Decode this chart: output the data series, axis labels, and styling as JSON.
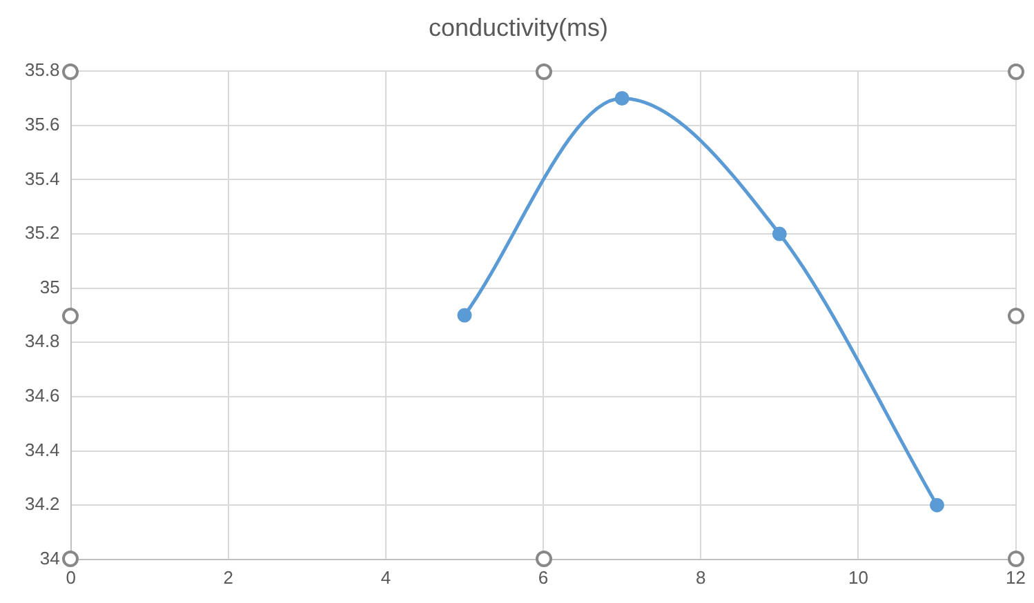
{
  "chart_data": {
    "type": "line",
    "title": "conductivity(ms)",
    "x": [
      5,
      7,
      9,
      11
    ],
    "series": [
      {
        "color": "#5b9bd5",
        "values": [
          34.9,
          35.7,
          35.2,
          34.2
        ]
      }
    ],
    "xlim": [
      0,
      12
    ],
    "xticks": [
      0,
      2,
      4,
      6,
      8,
      10,
      12
    ],
    "ylim": [
      34,
      35.8
    ],
    "yticks": [
      34,
      34.2,
      34.4,
      34.6,
      34.8,
      35,
      35.2,
      35.4,
      35.6,
      35.8
    ],
    "grid": true,
    "legend": false,
    "marker": "circle",
    "line_style": "solid"
  }
}
